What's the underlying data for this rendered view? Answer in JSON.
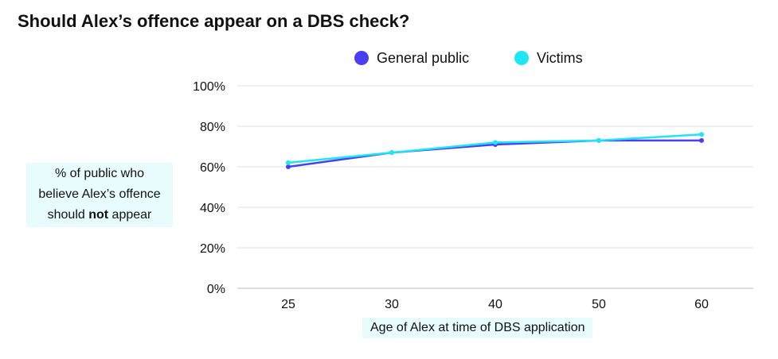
{
  "chart_data": {
    "type": "line",
    "title": "Should Alex’s offence appear on a DBS check?",
    "xlabel": "Age of Alex at time of DBS application",
    "ylabel": {
      "line1": "% of public who",
      "line2": "believe Alex’s offence",
      "line3_pre": "should ",
      "line3_bold": "not",
      "line3_post": " appear"
    },
    "x": [
      25,
      30,
      40,
      50,
      60
    ],
    "x_tick_labels": [
      "25",
      "30",
      "40",
      "50",
      "60"
    ],
    "y_tick_labels": [
      "0%",
      "20%",
      "40%",
      "60%",
      "80%",
      "100%"
    ],
    "y_ticks": [
      0,
      20,
      40,
      60,
      80,
      100
    ],
    "ylim": [
      0,
      100
    ],
    "grid": true,
    "legend_position": "top",
    "series": [
      {
        "name": "General public",
        "color": "#4a3ff0",
        "values": [
          60,
          67,
          71,
          73,
          73
        ]
      },
      {
        "name": "Victims",
        "color": "#1ee6f5",
        "values": [
          62,
          67,
          72,
          73,
          76
        ]
      }
    ]
  }
}
